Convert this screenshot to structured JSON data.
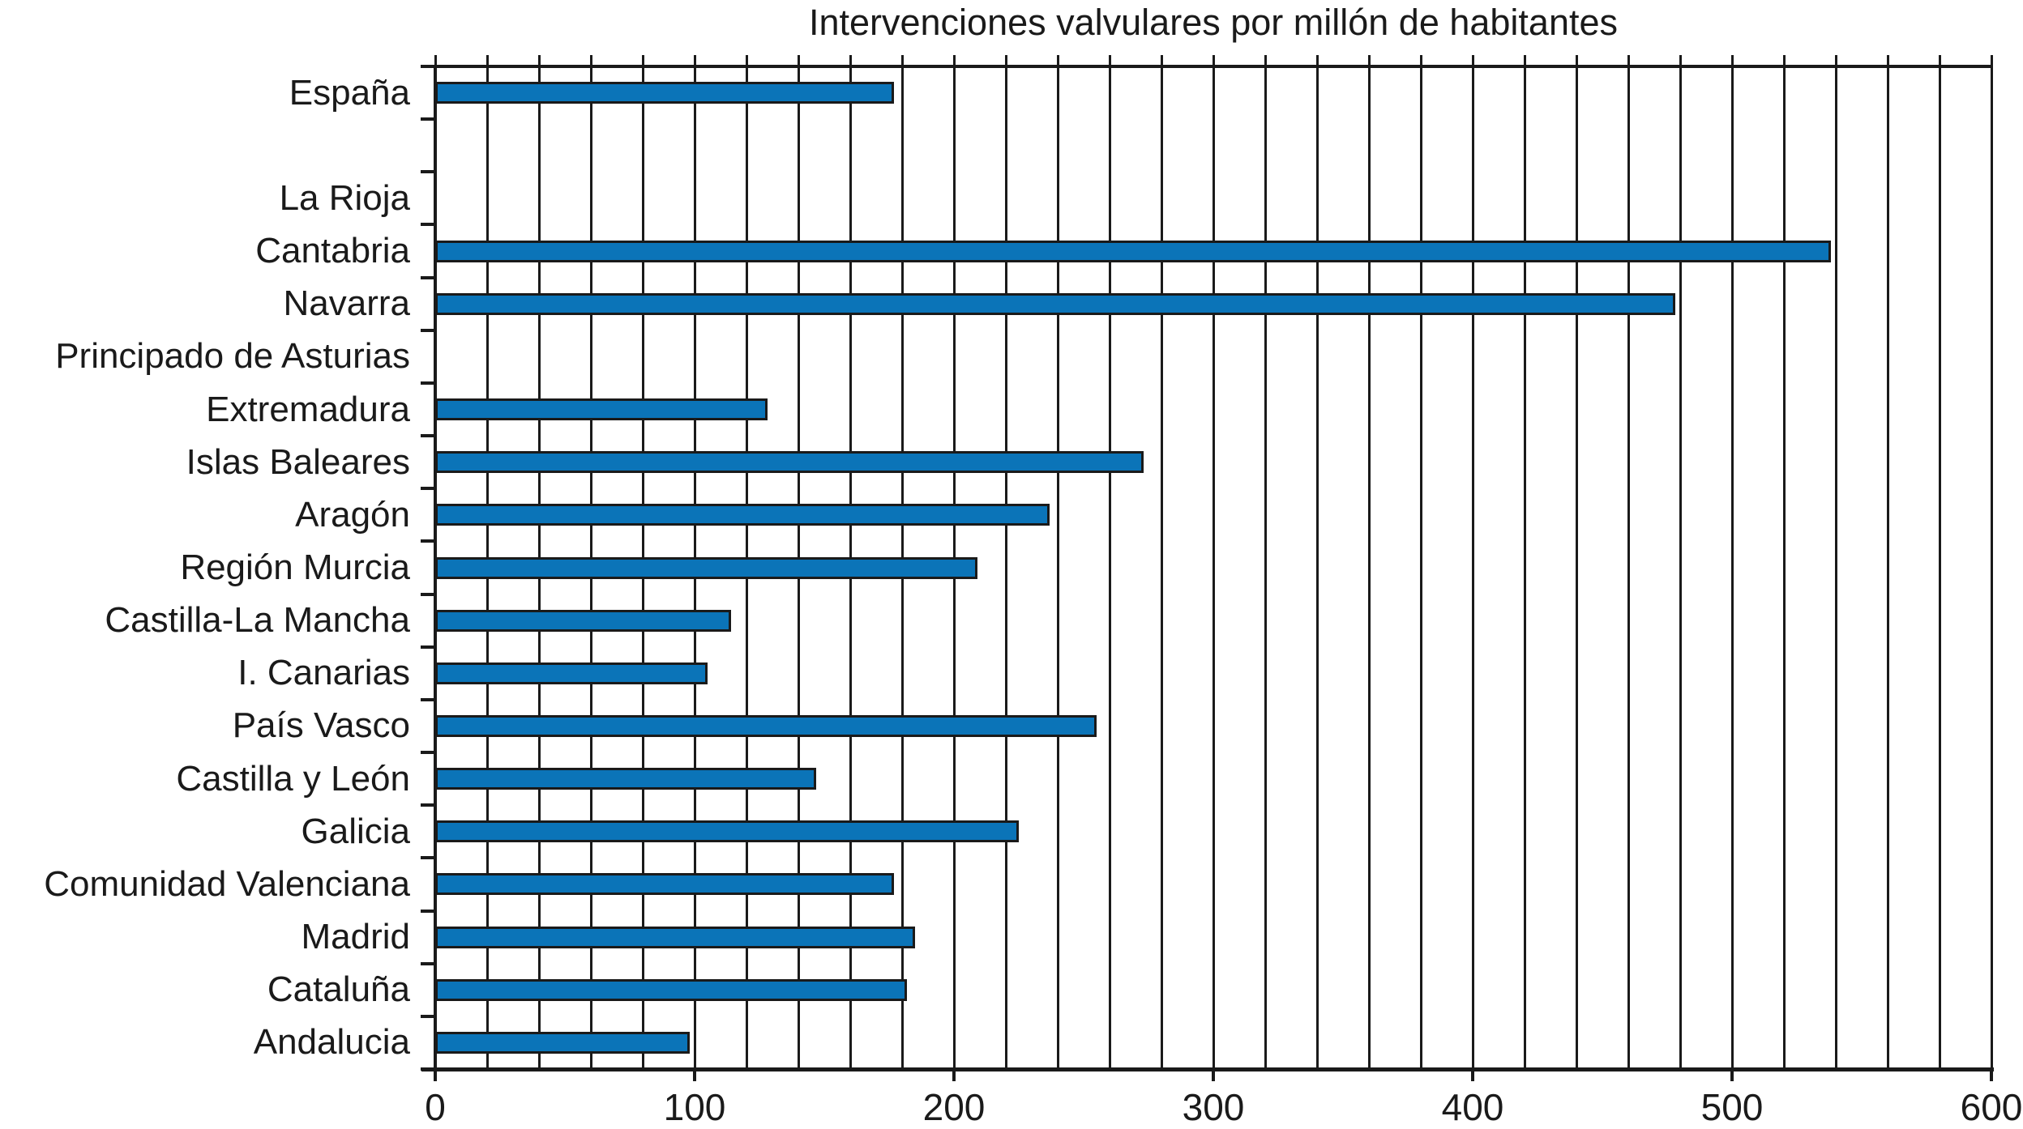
{
  "chart_data": {
    "type": "bar",
    "orientation": "horizontal",
    "title": "Intervenciones valvulares por millón de habitantes",
    "x_axis": {
      "min": 0,
      "max": 600,
      "grid_step": 20,
      "tick_step": 100,
      "tick_labels": [
        "0",
        "100",
        "200",
        "300",
        "400",
        "500",
        "600"
      ]
    },
    "grid": "on",
    "legend": "none",
    "rows": [
      {
        "label": "España",
        "value": 177
      },
      {
        "label": "",
        "value": null
      },
      {
        "label": "La Rioja",
        "value": null
      },
      {
        "label": "Cantabria",
        "value": 538
      },
      {
        "label": "Navarra",
        "value": 478
      },
      {
        "label": "Principado de Asturias",
        "value": null
      },
      {
        "label": "Extremadura",
        "value": 128
      },
      {
        "label": "Islas Baleares",
        "value": 273
      },
      {
        "label": "Aragón",
        "value": 237
      },
      {
        "label": "Región Murcia",
        "value": 209
      },
      {
        "label": "Castilla-La Mancha",
        "value": 114
      },
      {
        "label": "I. Canarias",
        "value": 105
      },
      {
        "label": "País Vasco",
        "value": 255
      },
      {
        "label": "Castilla y León",
        "value": 147
      },
      {
        "label": "Galicia",
        "value": 225
      },
      {
        "label": "Comunidad Valenciana",
        "value": 177
      },
      {
        "label": "Madrid",
        "value": 185
      },
      {
        "label": "Cataluña",
        "value": 182
      },
      {
        "label": "Andalucia",
        "value": 98
      }
    ],
    "bar_color": "#0B74B8",
    "line_color": "#1A1A1A",
    "text_color": "#1A1A1A"
  }
}
